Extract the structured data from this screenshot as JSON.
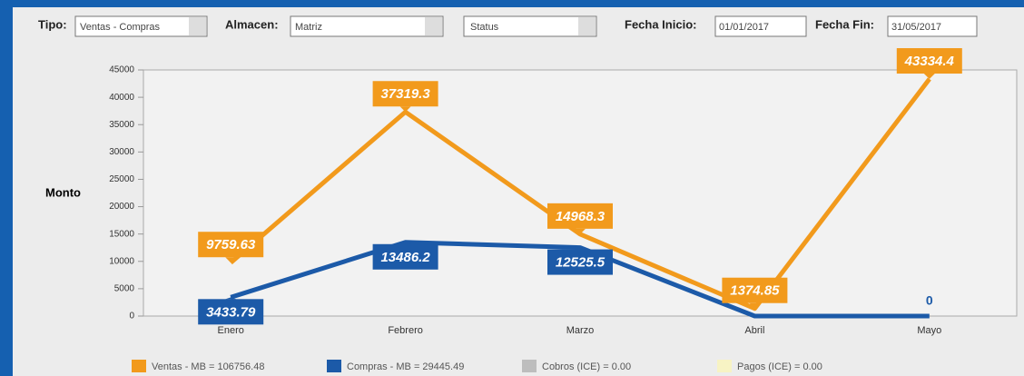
{
  "toolbar": {
    "tipo_label": "Tipo:",
    "tipo_value": "Ventas - Compras",
    "almacen_label": "Almacen:",
    "almacen_value": "Matriz",
    "status_value": "Status",
    "fecha_inicio_label": "Fecha Inicio:",
    "fecha_inicio_value": "01/01/2017",
    "fecha_fin_label": "Fecha Fin:",
    "fecha_fin_value": "31/05/2017"
  },
  "chart_data": {
    "type": "line",
    "y_label": "Monto",
    "categories": [
      "Enero",
      "Febrero",
      "Marzo",
      "Abril",
      "Mayo"
    ],
    "series": [
      {
        "name": "Ventas - MB = 106756.48",
        "color": "#f29a1c",
        "values": [
          9759.63,
          37319.3,
          14968.3,
          1374.85,
          43334.4
        ],
        "value_labels": [
          "9759.63",
          "37319.3",
          "14968.3",
          "1374.85",
          "43334.4"
        ]
      },
      {
        "name": "Compras - MB = 29445.49",
        "color": "#1c5aa8",
        "values": [
          3433.79,
          13486.2,
          12525.5,
          0,
          0
        ],
        "value_labels": [
          "3433.79",
          "13486.2",
          "12525.5",
          null,
          "0"
        ]
      },
      {
        "name": "Cobros (ICE) = 0.00",
        "color": "#bdbdbd"
      },
      {
        "name": "Pagos (ICE) = 0.00",
        "color": "#f7f3c4"
      }
    ],
    "ylim": [
      0,
      45000
    ],
    "yticks": [
      0,
      5000,
      10000,
      15000,
      20000,
      25000,
      30000,
      35000,
      40000,
      45000
    ]
  }
}
